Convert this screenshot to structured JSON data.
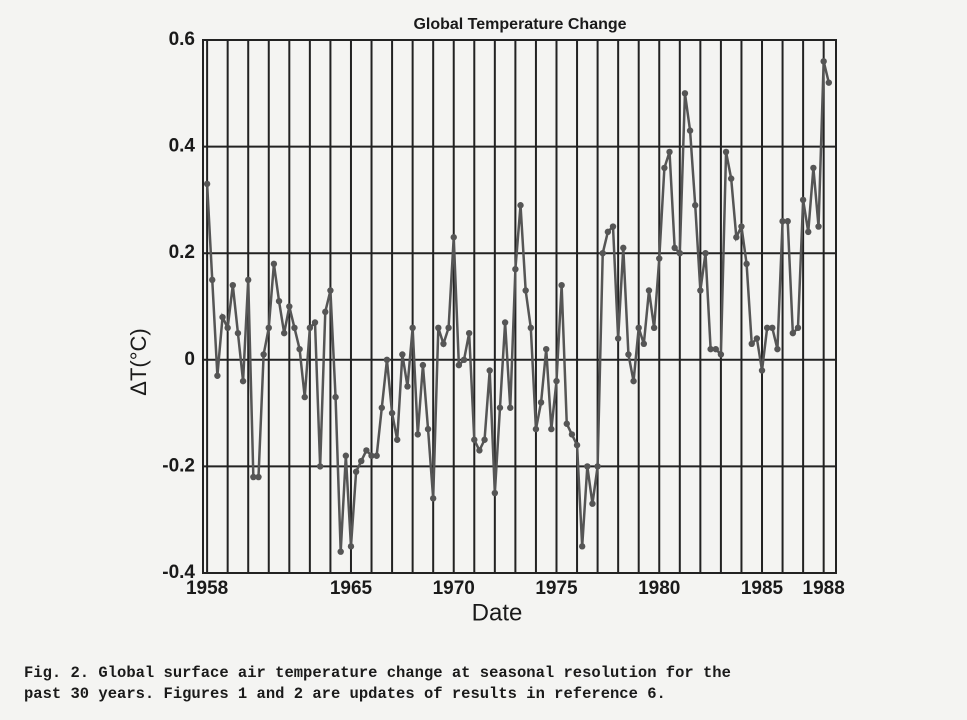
{
  "chart_data": {
    "type": "line",
    "title": "Global Temperature Change",
    "x_label": "Date",
    "y_label": "ΔT(°C)",
    "x": [
      1958,
      1958.25,
      1958.5,
      1958.75,
      1959,
      1959.25,
      1959.5,
      1959.75,
      1960,
      1960.25,
      1960.5,
      1960.75,
      1961,
      1961.25,
      1961.5,
      1961.75,
      1962,
      1962.25,
      1962.5,
      1962.75,
      1963,
      1963.25,
      1963.5,
      1963.75,
      1964,
      1964.25,
      1964.5,
      1964.75,
      1965,
      1965.25,
      1965.5,
      1965.75,
      1966,
      1966.25,
      1966.5,
      1966.75,
      1967,
      1967.25,
      1967.5,
      1967.75,
      1968,
      1968.25,
      1968.5,
      1968.75,
      1969,
      1969.25,
      1969.5,
      1969.75,
      1970,
      1970.25,
      1970.5,
      1970.75,
      1971,
      1971.25,
      1971.5,
      1971.75,
      1972,
      1972.25,
      1972.5,
      1972.75,
      1973,
      1973.25,
      1973.5,
      1973.75,
      1974,
      1974.25,
      1974.5,
      1974.75,
      1975,
      1975.25,
      1975.5,
      1975.75,
      1976,
      1976.25,
      1976.5,
      1976.75,
      1977,
      1977.25,
      1977.5,
      1977.75,
      1978,
      1978.25,
      1978.5,
      1978.75,
      1979,
      1979.25,
      1979.5,
      1979.75,
      1980,
      1980.25,
      1980.5,
      1980.75,
      1981,
      1981.25,
      1981.5,
      1981.75,
      1982,
      1982.25,
      1982.5,
      1982.75,
      1983,
      1983.25,
      1983.5,
      1983.75,
      1984,
      1984.25,
      1984.5,
      1984.75,
      1985,
      1985.25,
      1985.5,
      1985.75,
      1986,
      1986.25,
      1986.5,
      1986.75,
      1987,
      1987.25,
      1987.5,
      1987.75,
      1988,
      1988.25
    ],
    "series": [
      {
        "name": "ΔT",
        "color": "#555555",
        "values": [
          0.33,
          0.15,
          -0.03,
          0.08,
          0.06,
          0.14,
          0.05,
          -0.04,
          0.15,
          -0.22,
          -0.22,
          0.01,
          0.06,
          0.18,
          0.11,
          0.05,
          0.1,
          0.06,
          0.02,
          -0.07,
          0.06,
          0.07,
          -0.2,
          0.09,
          0.13,
          -0.07,
          -0.36,
          -0.18,
          -0.35,
          -0.21,
          -0.19,
          -0.17,
          -0.18,
          -0.18,
          -0.09,
          0.0,
          -0.1,
          -0.15,
          0.01,
          -0.05,
          0.06,
          -0.14,
          -0.01,
          -0.13,
          -0.26,
          0.06,
          0.03,
          0.06,
          0.23,
          -0.01,
          0.0,
          0.05,
          -0.15,
          -0.17,
          -0.15,
          -0.02,
          -0.25,
          -0.09,
          0.07,
          -0.09,
          0.17,
          0.29,
          0.13,
          0.06,
          -0.13,
          -0.08,
          0.02,
          -0.13,
          -0.04,
          0.14,
          -0.12,
          -0.14,
          -0.16,
          -0.35,
          -0.2,
          -0.27,
          -0.2,
          0.2,
          0.24,
          0.25,
          0.04,
          0.21,
          0.01,
          -0.04,
          0.06,
          0.03,
          0.13,
          0.06,
          0.19,
          0.36,
          0.39,
          0.21,
          0.2,
          0.5,
          0.43,
          0.29,
          0.13,
          0.2,
          0.02,
          0.02,
          0.01,
          0.39,
          0.34,
          0.23,
          0.25,
          0.18,
          0.03,
          0.04,
          -0.02,
          0.06,
          0.06,
          0.02,
          0.26,
          0.26,
          0.05,
          0.06,
          0.3,
          0.24,
          0.36,
          0.25,
          0.56,
          0.52
        ]
      }
    ],
    "xlim": [
      1957.8,
      1988.6
    ],
    "xticks": [
      1958,
      1965,
      1970,
      1975,
      1980,
      1985,
      1988
    ],
    "xminorticks": [
      1959,
      1960,
      1961,
      1962,
      1963,
      1964,
      1966,
      1967,
      1968,
      1969,
      1971,
      1972,
      1973,
      1974,
      1976,
      1977,
      1978,
      1979,
      1981,
      1982,
      1983,
      1984,
      1986,
      1987
    ],
    "ylim": [
      -0.4,
      0.6
    ],
    "yticks": [
      -0.4,
      -0.2,
      0,
      0.2,
      0.4,
      0.6
    ],
    "grid": true,
    "caption": [
      "Fig. 2.  Global surface air temperature change at seasonal resolution for the",
      "past 30 years.  Figures 1 and 2 are updates of results in reference 6."
    ]
  }
}
